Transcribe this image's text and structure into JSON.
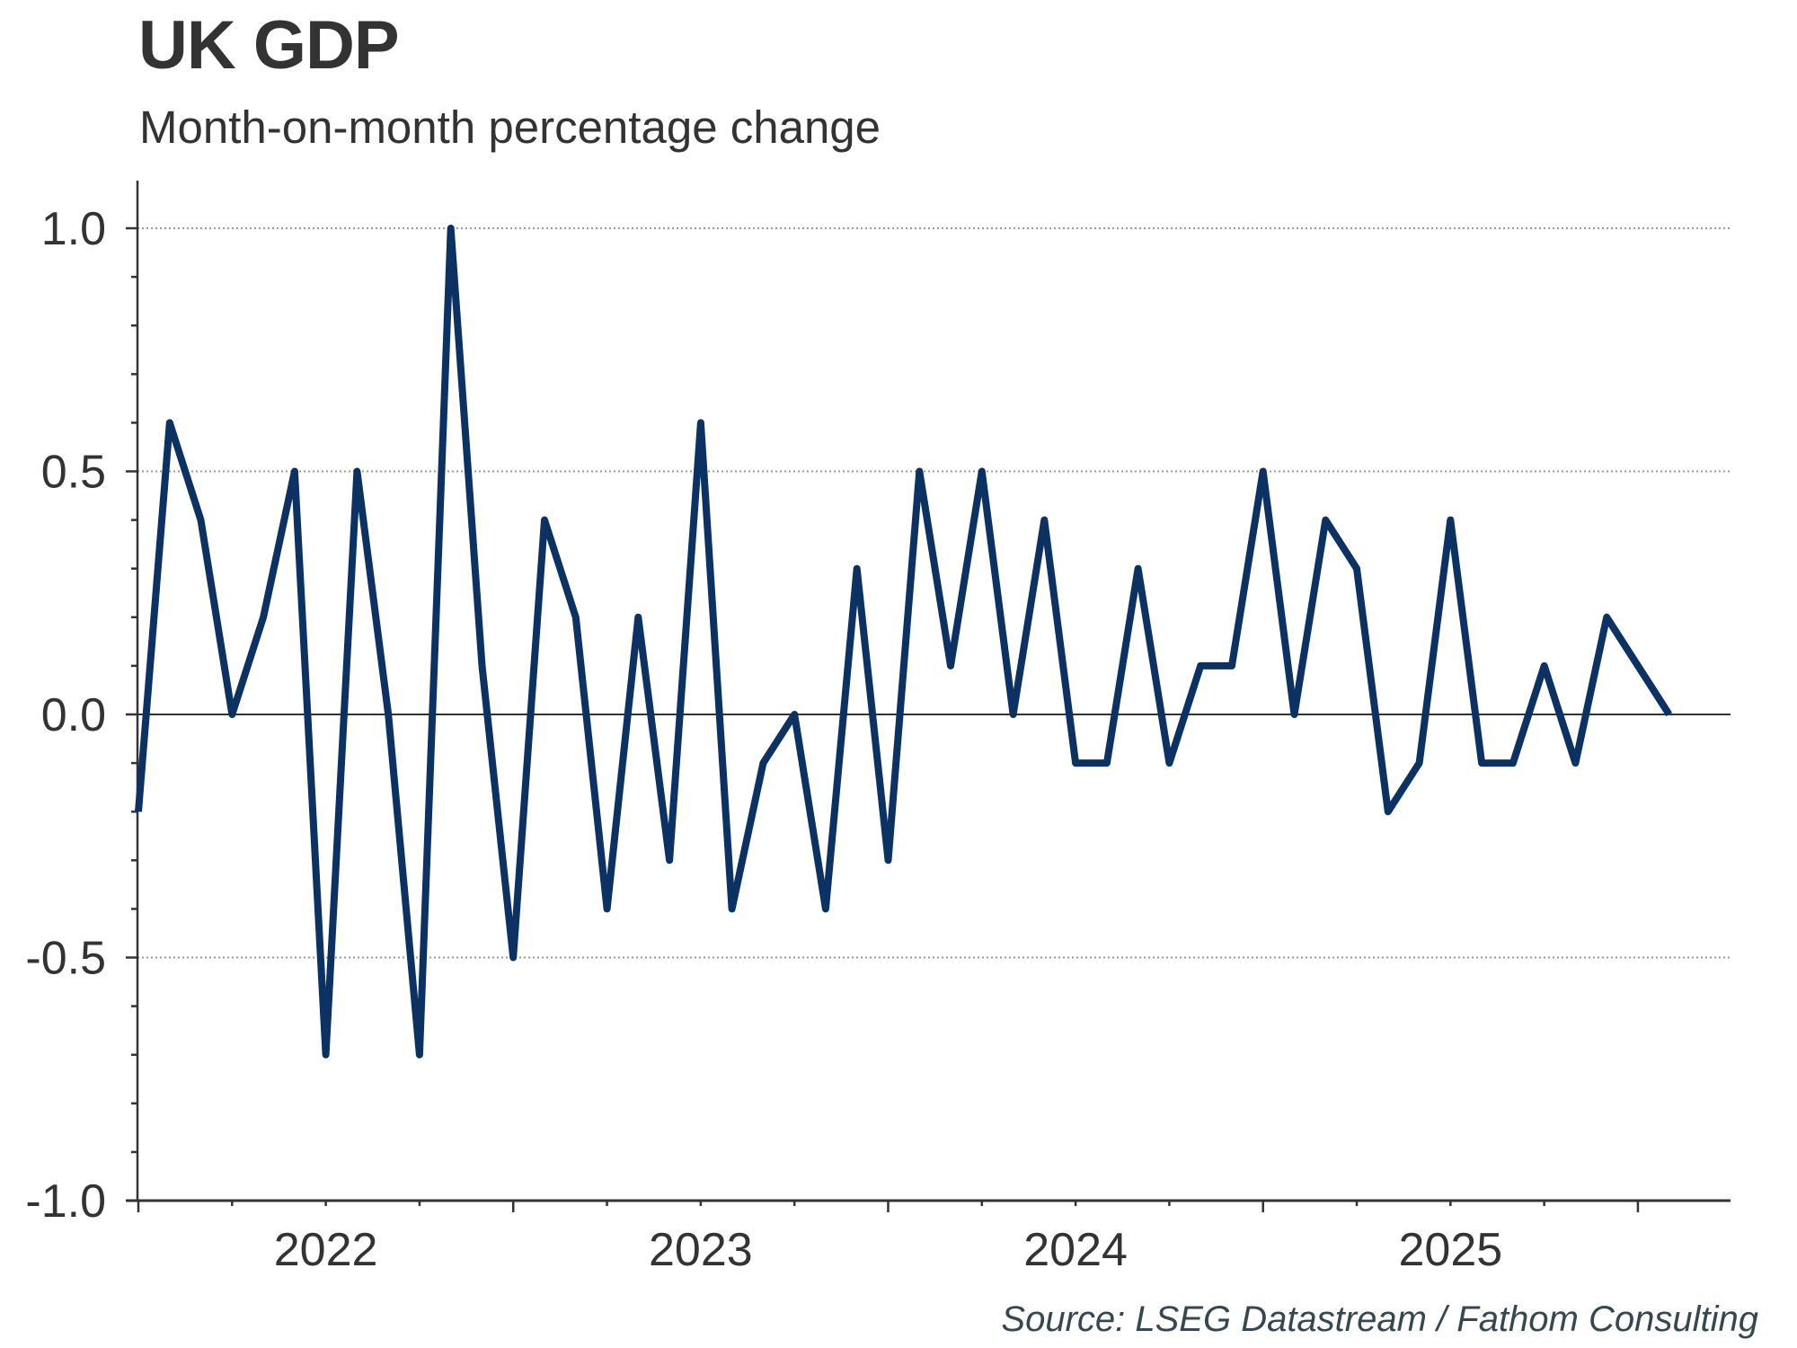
{
  "header": {
    "title": "UK GDP",
    "subtitle": "Month-on-month percentage change"
  },
  "footer": {
    "source": "Source: LSEG Datastream / Fathom Consulting"
  },
  "colors": {
    "series": "#0b3262",
    "axis": "#333333",
    "grid": "#9a9a9a",
    "text": "#333333",
    "source_text": "#37474f"
  },
  "chart_data": {
    "type": "line",
    "title": "UK GDP",
    "subtitle": "Month-on-month percentage change",
    "xlabel": "",
    "ylabel": "",
    "ylim": [
      -1.0,
      1.0
    ],
    "yticks": [
      -1.0,
      -0.5,
      0.0,
      0.5,
      1.0
    ],
    "ytick_labels": [
      "-1.0",
      "-0.5",
      "0.0",
      "0.5",
      "1.0"
    ],
    "y_minor_step": 0.1,
    "grid": "horizontal dotted at major y ticks",
    "x_tick_labels": [
      "2022",
      "2023",
      "2024",
      "2025"
    ],
    "x_major_tick_every_months": 12,
    "x_minor_tick_every_months": 3,
    "legend": "none",
    "x": [
      "2021-12",
      "2022-01",
      "2022-02",
      "2022-03",
      "2022-04",
      "2022-05",
      "2022-06",
      "2022-07",
      "2022-08",
      "2022-09",
      "2022-10",
      "2022-11",
      "2022-12",
      "2023-01",
      "2023-02",
      "2023-03",
      "2023-04",
      "2023-05",
      "2023-06",
      "2023-07",
      "2023-08",
      "2023-09",
      "2023-10",
      "2023-11",
      "2023-12",
      "2024-01",
      "2024-02",
      "2024-03",
      "2024-04",
      "2024-05",
      "2024-06",
      "2024-07",
      "2024-08",
      "2024-09",
      "2024-10",
      "2024-11",
      "2024-12",
      "2025-01",
      "2025-02",
      "2025-03",
      "2025-04",
      "2025-05",
      "2025-06",
      "2025-07",
      "2025-08",
      "2025-09",
      "2025-10",
      "2025-11",
      "2025-12",
      "2026-01"
    ],
    "series": [
      {
        "name": "UK GDP m/m %",
        "values": [
          -0.2,
          0.6,
          0.4,
          0.0,
          0.2,
          0.5,
          -0.7,
          0.5,
          0.0,
          -0.7,
          1.0,
          0.1,
          -0.5,
          0.4,
          0.2,
          -0.4,
          0.2,
          -0.3,
          0.6,
          -0.4,
          -0.1,
          0.0,
          -0.4,
          0.3,
          -0.3,
          0.5,
          0.1,
          0.5,
          0.0,
          0.4,
          -0.1,
          -0.1,
          0.3,
          -0.1,
          0.1,
          0.1,
          0.5,
          0.0,
          0.4,
          0.3,
          -0.2,
          -0.1,
          0.4,
          -0.1,
          -0.1,
          0.1,
          -0.1,
          0.2,
          0.1,
          0.0
        ]
      }
    ]
  }
}
